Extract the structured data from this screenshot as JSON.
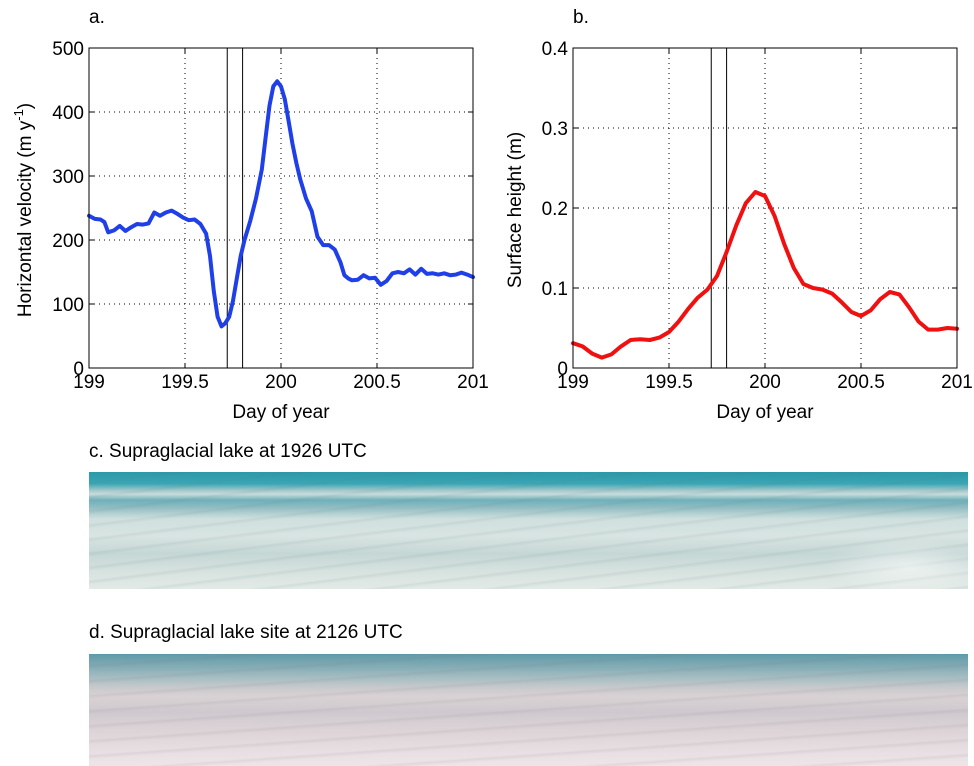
{
  "panels": {
    "a": {
      "letter": "a."
    },
    "b": {
      "letter": "b."
    },
    "c": {
      "title": "c. Supraglacial lake at 1926 UTC"
    },
    "d": {
      "title": "d. Supraglacial lake site at 2126 UTC"
    }
  },
  "chart_data": [
    {
      "type": "line",
      "panel": "a.",
      "xlabel": "Day of year",
      "ylabel_main": "Horizontal velocity (m y",
      "ylabel_sup": "-1",
      "ylabel_end": ")",
      "xlim": [
        199,
        201
      ],
      "ylim": [
        0,
        500
      ],
      "xticks": [
        199,
        199.5,
        200,
        200.5,
        201
      ],
      "xtick_labels": [
        "199",
        "199.5",
        "200",
        "200.5",
        "201"
      ],
      "yticks": [
        0,
        100,
        200,
        300,
        400,
        500
      ],
      "ytick_labels": [
        "0",
        "100",
        "200",
        "300",
        "400",
        "500"
      ],
      "grid": true,
      "vlines": [
        199.72,
        199.8
      ],
      "series": [
        {
          "color": "#1f3fe8",
          "x": [
            199.0,
            199.03,
            199.06,
            199.08,
            199.1,
            199.13,
            199.16,
            199.19,
            199.22,
            199.25,
            199.28,
            199.31,
            199.34,
            199.37,
            199.4,
            199.43,
            199.46,
            199.49,
            199.52,
            199.55,
            199.58,
            199.61,
            199.63,
            199.65,
            199.67,
            199.69,
            199.71,
            199.73,
            199.75,
            199.77,
            199.79,
            199.81,
            199.84,
            199.87,
            199.9,
            199.92,
            199.94,
            199.96,
            199.98,
            200.0,
            200.02,
            200.04,
            200.06,
            200.08,
            200.1,
            200.13,
            200.16,
            200.19,
            200.22,
            200.25,
            200.28,
            200.31,
            200.33,
            200.35,
            200.37,
            200.4,
            200.43,
            200.46,
            200.49,
            200.52,
            200.55,
            200.58,
            200.61,
            200.64,
            200.67,
            200.7,
            200.73,
            200.76,
            200.79,
            200.82,
            200.85,
            200.88,
            200.91,
            200.94,
            200.97,
            201.0
          ],
          "y": [
            238,
            233,
            232,
            228,
            212,
            215,
            222,
            214,
            220,
            225,
            224,
            226,
            243,
            238,
            243,
            246,
            241,
            235,
            231,
            232,
            225,
            210,
            175,
            120,
            80,
            65,
            70,
            80,
            105,
            140,
            175,
            200,
            230,
            265,
            310,
            360,
            410,
            440,
            448,
            440,
            420,
            385,
            350,
            320,
            295,
            265,
            245,
            205,
            192,
            192,
            185,
            165,
            145,
            140,
            137,
            138,
            145,
            140,
            141,
            130,
            136,
            148,
            150,
            148,
            154,
            146,
            155,
            147,
            148,
            146,
            148,
            145,
            146,
            149,
            146,
            142
          ]
        }
      ]
    },
    {
      "type": "line",
      "panel": "b.",
      "xlabel": "Day of year",
      "ylabel": "Surface height (m)",
      "xlim": [
        199,
        201
      ],
      "ylim": [
        0,
        0.4
      ],
      "xticks": [
        199,
        199.5,
        200,
        200.5,
        201
      ],
      "xtick_labels": [
        "199",
        "199.5",
        "200",
        "200.5",
        "201"
      ],
      "yticks": [
        0,
        0.1,
        0.2,
        0.3,
        0.4
      ],
      "ytick_labels": [
        "0",
        "0.1",
        "0.2",
        "0.3",
        "0.4"
      ],
      "grid": true,
      "vlines": [
        199.72,
        199.8
      ],
      "series": [
        {
          "color": "#f01010",
          "x": [
            199.0,
            199.05,
            199.1,
            199.15,
            199.2,
            199.25,
            199.3,
            199.35,
            199.4,
            199.45,
            199.5,
            199.55,
            199.6,
            199.65,
            199.7,
            199.75,
            199.8,
            199.85,
            199.9,
            199.95,
            200.0,
            200.05,
            200.1,
            200.15,
            200.2,
            200.25,
            200.3,
            200.35,
            200.4,
            200.45,
            200.5,
            200.55,
            200.6,
            200.65,
            200.7,
            200.75,
            200.8,
            200.85,
            200.9,
            200.95,
            201.0
          ],
          "y": [
            0.031,
            0.027,
            0.018,
            0.013,
            0.017,
            0.027,
            0.035,
            0.036,
            0.035,
            0.038,
            0.045,
            0.058,
            0.074,
            0.088,
            0.098,
            0.115,
            0.145,
            0.178,
            0.206,
            0.22,
            0.215,
            0.19,
            0.155,
            0.125,
            0.105,
            0.1,
            0.098,
            0.093,
            0.082,
            0.07,
            0.065,
            0.072,
            0.086,
            0.095,
            0.092,
            0.076,
            0.058,
            0.048,
            0.048,
            0.05,
            0.049
          ]
        }
      ]
    }
  ]
}
